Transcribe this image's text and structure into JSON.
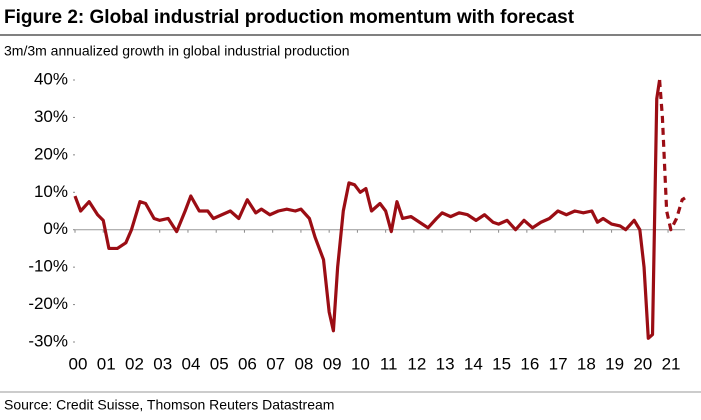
{
  "chart_data": {
    "type": "line",
    "title": "Figure 2: Global industrial production momentum with forecast",
    "subtitle": "3m/3m annualized growth in global industrial production",
    "source": "Source: Credit Suisse, Thomson Reuters Datastream",
    "xlim": [
      2000,
      2021.6
    ],
    "xticks": [
      {
        "value": 2000,
        "label": "00"
      },
      {
        "value": 2001,
        "label": "01"
      },
      {
        "value": 2002,
        "label": "02"
      },
      {
        "value": 2003,
        "label": "03"
      },
      {
        "value": 2004,
        "label": "04"
      },
      {
        "value": 2005,
        "label": "05"
      },
      {
        "value": 2006,
        "label": "06"
      },
      {
        "value": 2007,
        "label": "07"
      },
      {
        "value": 2008,
        "label": "08"
      },
      {
        "value": 2009,
        "label": "09"
      },
      {
        "value": 2010,
        "label": "10"
      },
      {
        "value": 2011,
        "label": "11"
      },
      {
        "value": 2012,
        "label": "12"
      },
      {
        "value": 2013,
        "label": "13"
      },
      {
        "value": 2014,
        "label": "14"
      },
      {
        "value": 2015,
        "label": "15"
      },
      {
        "value": 2016,
        "label": "16"
      },
      {
        "value": 2017,
        "label": "17"
      },
      {
        "value": 2018,
        "label": "18"
      },
      {
        "value": 2019,
        "label": "19"
      },
      {
        "value": 2020,
        "label": "20"
      },
      {
        "value": 2021,
        "label": "21"
      }
    ],
    "ylim": [
      -30,
      40
    ],
    "yticks": [
      {
        "value": 40,
        "label": "40%"
      },
      {
        "value": 30,
        "label": "30%"
      },
      {
        "value": 20,
        "label": "20%"
      },
      {
        "value": 10,
        "label": "10%"
      },
      {
        "value": 0,
        "label": "0%"
      },
      {
        "value": -10,
        "label": "-10%"
      },
      {
        "value": -20,
        "label": "-20%"
      },
      {
        "value": -30,
        "label": "-30%"
      }
    ],
    "series": [
      {
        "color": "#9b0d14",
        "dashed": false,
        "x": [
          2000.0,
          2000.2,
          2000.5,
          2000.8,
          2001.0,
          2001.2,
          2001.5,
          2001.8,
          2002.0,
          2002.3,
          2002.5,
          2002.8,
          2003.0,
          2003.3,
          2003.6,
          2003.9,
          2004.1,
          2004.4,
          2004.7,
          2004.9,
          2005.2,
          2005.5,
          2005.8,
          2006.1,
          2006.4,
          2006.6,
          2006.9,
          2007.2,
          2007.5,
          2007.8,
          2008.0,
          2008.3,
          2008.5,
          2008.8,
          2009.0,
          2009.15,
          2009.3,
          2009.5,
          2009.7,
          2009.9,
          2010.1,
          2010.3,
          2010.5,
          2010.8,
          2011.0,
          2011.2,
          2011.4,
          2011.6,
          2011.9,
          2012.2,
          2012.5,
          2012.8,
          2013.0,
          2013.3,
          2013.6,
          2013.9,
          2014.2,
          2014.5,
          2014.8,
          2015.0,
          2015.3,
          2015.6,
          2015.9,
          2016.2,
          2016.5,
          2016.8,
          2017.1,
          2017.4,
          2017.7,
          2018.0,
          2018.3,
          2018.5,
          2018.7,
          2019.0,
          2019.3,
          2019.5,
          2019.8,
          2020.0,
          2020.15,
          2020.3,
          2020.45,
          2020.6,
          2020.7
        ],
        "values": [
          9,
          5,
          7.5,
          4,
          2.5,
          -5,
          -5,
          -3.5,
          0,
          7.5,
          7,
          3,
          2.5,
          3,
          -0.5,
          5,
          9,
          5,
          5,
          3,
          4,
          5,
          3,
          8,
          4.5,
          5.5,
          4,
          5,
          5.5,
          5,
          5.5,
          3,
          -2,
          -8,
          -22,
          -27,
          -10,
          5,
          12.5,
          12,
          10,
          11,
          5,
          7,
          5,
          -0.5,
          7.5,
          3,
          3.5,
          2,
          0.5,
          3,
          4.5,
          3.5,
          4.5,
          4,
          2.5,
          4,
          2,
          1.5,
          2.5,
          0,
          2.5,
          0.5,
          2,
          3,
          5,
          4,
          5,
          4.5,
          5,
          2,
          3,
          1.5,
          1,
          0,
          2.5,
          0,
          -10,
          -29,
          -28,
          35,
          40
        ]
      },
      {
        "color": "#9b0d14",
        "dashed": true,
        "x": [
          2020.7,
          2020.8,
          2020.95,
          2021.1,
          2021.3,
          2021.5,
          2021.6
        ],
        "values": [
          40,
          30,
          5,
          0,
          3,
          8,
          8.5
        ]
      }
    ]
  }
}
